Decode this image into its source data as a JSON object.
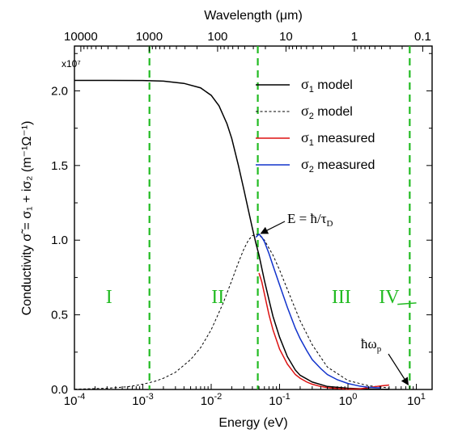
{
  "chart_data": {
    "type": "line",
    "xlabel": "Energy (eV)",
    "x2label": "Wavelength (μm)",
    "ylabel": "Conductivity σ̃ = σ₁ + iσ₂ (m⁻¹Ω⁻¹)",
    "ylabel_prefix": "Conductivity",
    "yscale_label": "x10⁷",
    "xscale": "log",
    "xlim": [
      0.0001,
      17
    ],
    "ylim": [
      0,
      2.3
    ],
    "yticks": [
      0.0,
      0.5,
      1.0,
      1.5,
      2.0
    ],
    "ytick_labels": [
      "0.0",
      "0.5",
      "1.0",
      "1.5",
      "2.0"
    ],
    "xtick_labels": [
      {
        "value": 0.0001,
        "base": "10",
        "exp": "-4"
      },
      {
        "value": 0.001,
        "base": "10",
        "exp": "-3"
      },
      {
        "value": 0.01,
        "base": "10",
        "exp": "-2"
      },
      {
        "value": 0.1,
        "base": "10",
        "exp": "-1"
      },
      {
        "value": 1,
        "base": "10",
        "exp": "0"
      },
      {
        "value": 10,
        "base": "10",
        "exp": "1"
      }
    ],
    "x2tick_labels": [
      {
        "wavelength_um": 10000,
        "label": "10000"
      },
      {
        "wavelength_um": 1000,
        "label": "1000"
      },
      {
        "wavelength_um": 100,
        "label": "100"
      },
      {
        "wavelength_um": 10,
        "label": "10"
      },
      {
        "wavelength_um": 1,
        "label": "1"
      },
      {
        "wavelength_um": 0.1,
        "label": "0.1"
      }
    ],
    "vlines": [
      0.00125,
      0.048,
      8.0
    ],
    "vline_color": "#22bb22",
    "regions": [
      {
        "label": "I",
        "x": 0.00032,
        "y": 0.58
      },
      {
        "label": "II",
        "x": 0.0125,
        "y": 0.58
      },
      {
        "label": "III",
        "x": 0.8,
        "y": 0.58
      },
      {
        "label": "IV",
        "x": 4.0,
        "y": 0.58
      }
    ],
    "series": [
      {
        "name": "σ₁ model",
        "color": "#000000",
        "style": "solid",
        "x": [
          0.0001,
          0.0003,
          0.001,
          0.002,
          0.004,
          0.007,
          0.01,
          0.013,
          0.017,
          0.02,
          0.025,
          0.03,
          0.035,
          0.04,
          0.045,
          0.05,
          0.06,
          0.07,
          0.08,
          0.1,
          0.13,
          0.17,
          0.2,
          0.3,
          0.5,
          1,
          2,
          4
        ],
        "y": [
          2.07,
          2.07,
          2.069,
          2.065,
          2.05,
          2.02,
          1.97,
          1.9,
          1.78,
          1.68,
          1.5,
          1.34,
          1.2,
          1.08,
          0.98,
          0.9,
          0.73,
          0.6,
          0.49,
          0.35,
          0.22,
          0.13,
          0.095,
          0.05,
          0.02,
          0.008,
          0.003,
          0.001
        ]
      },
      {
        "name": "σ₂ model",
        "color": "#000000",
        "style": "dashed",
        "x": [
          0.0001,
          0.0003,
          0.0006,
          0.001,
          0.0015,
          0.002,
          0.003,
          0.005,
          0.007,
          0.01,
          0.015,
          0.02,
          0.025,
          0.03,
          0.035,
          0.04,
          0.045,
          0.05,
          0.06,
          0.08,
          0.1,
          0.15,
          0.2,
          0.3,
          0.5,
          1,
          2,
          4
        ],
        "y": [
          0.002,
          0.008,
          0.018,
          0.035,
          0.055,
          0.075,
          0.115,
          0.2,
          0.28,
          0.4,
          0.58,
          0.73,
          0.85,
          0.94,
          1.0,
          1.03,
          1.04,
          1.035,
          1.0,
          0.9,
          0.8,
          0.6,
          0.46,
          0.3,
          0.15,
          0.06,
          0.025,
          0.01
        ]
      },
      {
        "name": "σ₁ measured",
        "color": "#dd1111",
        "style": "solid",
        "x": [
          0.05,
          0.055,
          0.06,
          0.07,
          0.08,
          0.1,
          0.13,
          0.17,
          0.2,
          0.25,
          0.3,
          0.4,
          0.5,
          0.7,
          1.0,
          1.5,
          2.0,
          3.0,
          4.0
        ],
        "y": [
          0.78,
          0.72,
          0.64,
          0.5,
          0.4,
          0.27,
          0.17,
          0.1,
          0.075,
          0.05,
          0.035,
          0.02,
          0.012,
          0.006,
          0.003,
          0.004,
          0.012,
          0.024,
          0.03
        ]
      },
      {
        "name": "σ₂ measured",
        "color": "#1133cc",
        "style": "solid",
        "x": [
          0.045,
          0.05,
          0.055,
          0.06,
          0.07,
          0.08,
          0.1,
          0.13,
          0.17,
          0.2,
          0.25,
          0.3,
          0.4,
          0.5,
          0.7,
          1.0,
          1.5,
          2.0,
          2.5,
          3.0
        ],
        "y": [
          1.02,
          1.04,
          1.02,
          0.99,
          0.91,
          0.83,
          0.7,
          0.55,
          0.41,
          0.34,
          0.26,
          0.2,
          0.14,
          0.1,
          0.065,
          0.04,
          0.022,
          0.015,
          0.012,
          0.01
        ]
      }
    ],
    "legend": {
      "placement": "top-right",
      "entries": [
        {
          "sym": "σ",
          "sub": "1",
          "text": " model"
        },
        {
          "sym": "σ",
          "sub": "2",
          "text": " model"
        },
        {
          "sym": "σ",
          "sub": "1",
          "text": " measured"
        },
        {
          "sym": "σ",
          "sub": "2",
          "text": " measured"
        }
      ]
    },
    "annotations": [
      {
        "label": "E = ħ/τ",
        "sub": "D",
        "x": 0.048,
        "y": 1.04
      },
      {
        "label": "ħω",
        "sub": "p",
        "x": 8.0,
        "y": 0.0
      }
    ]
  }
}
